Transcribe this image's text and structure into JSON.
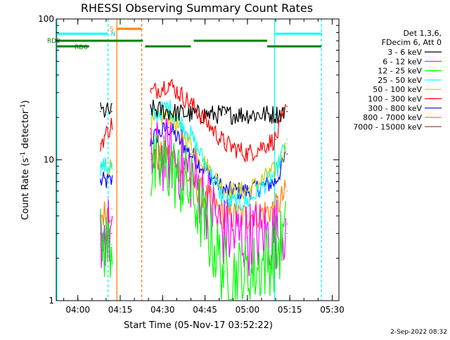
{
  "chart_data": {
    "type": "line",
    "title": "RHESSI Observing Summary Count Rates",
    "xlabel": "Start Time (05-Nov-17 03:52:22)",
    "ylabel_parts": [
      "Count Rate (s",
      "-1",
      " detector",
      "-1",
      ")"
    ],
    "yscale": "log",
    "ylim": [
      1,
      100
    ],
    "y_ticks": [
      1,
      10,
      100
    ],
    "y_tick_labels": [
      "1",
      "10",
      "100"
    ],
    "x_range": [
      "03:52:22",
      "05:32:22"
    ],
    "x_ticks": [
      "04:00",
      "04:15",
      "04:30",
      "04:45",
      "05:00",
      "05:15",
      "05:30"
    ],
    "info_lines": [
      "Det 1,3,6,",
      "FDecim 6, Att 0"
    ],
    "legend_position": "right",
    "series": [
      {
        "name": "3 - 6 keV",
        "color": "#000000",
        "x": [
          "04:08",
          "04:12",
          "04:26",
          "04:32",
          "04:40",
          "04:52",
          "05:00",
          "05:10",
          "05:14"
        ],
        "y": [
          22,
          22,
          23,
          22,
          21,
          21,
          21,
          21,
          22
        ]
      },
      {
        "name": "6 - 12 keV",
        "color": "#ff00ff",
        "x": [
          "04:08",
          "04:12",
          "04:26",
          "04:32",
          "04:40",
          "04:52",
          "05:00",
          "05:10",
          "05:14"
        ],
        "y": [
          3,
          3,
          10,
          11,
          8,
          3,
          2.8,
          3,
          3.5
        ]
      },
      {
        "name": "12 - 25 keV",
        "color": "#00ff00",
        "x": [
          "04:08",
          "04:12",
          "04:26",
          "04:32",
          "04:40",
          "04:52",
          "05:00",
          "05:10",
          "05:14"
        ],
        "y": [
          2.5,
          2.5,
          8,
          9,
          6,
          1.6,
          1.5,
          2.2,
          3
        ]
      },
      {
        "name": "25 - 50 keV",
        "color": "#00ffff",
        "x": [
          "04:08",
          "04:12",
          "04:26",
          "04:32",
          "04:40",
          "04:52",
          "05:00",
          "05:10",
          "05:14"
        ],
        "y": [
          9,
          9,
          20,
          24,
          15,
          5,
          5,
          8,
          14
        ]
      },
      {
        "name": "50 - 100 keV",
        "color": "#cccc00",
        "x": [
          "04:08",
          "04:12",
          "04:26",
          "04:32",
          "04:40",
          "04:52",
          "05:00",
          "05:10",
          "05:14"
        ],
        "y": [
          9,
          9,
          18,
          21,
          13,
          6,
          6,
          8.5,
          13
        ]
      },
      {
        "name": "100 - 300 keV",
        "color": "#ff0000",
        "x": [
          "04:08",
          "04:12",
          "04:26",
          "04:32",
          "04:40",
          "04:52",
          "05:00",
          "05:10",
          "05:14"
        ],
        "y": [
          13,
          18,
          30,
          35,
          25,
          13,
          11,
          14,
          24
        ]
      },
      {
        "name": "300 - 800 keV",
        "color": "#0000ff",
        "x": [
          "04:08",
          "04:12",
          "04:26",
          "04:32",
          "04:40",
          "04:52",
          "05:00",
          "05:10",
          "05:14"
        ],
        "y": [
          7,
          7,
          14,
          17,
          11,
          6,
          6,
          7,
          11
        ]
      },
      {
        "name": "800 - 7000 keV",
        "color": "#ff8000",
        "x": [
          "04:08",
          "04:12",
          "04:26",
          "04:32",
          "04:40",
          "04:52",
          "05:00",
          "05:10",
          "05:14"
        ],
        "y": [
          4,
          4.5,
          10,
          11,
          7,
          4,
          4,
          4.5,
          6
        ]
      },
      {
        "name": "7000 - 15000 keV",
        "color": "#a0522d",
        "x": [],
        "y": []
      }
    ],
    "flags": [
      {
        "label": "RD0",
        "color": "#008000"
      },
      {
        "label": "RD6",
        "color": "#008000"
      },
      {
        "label": "S",
        "color": "#ff8000"
      },
      {
        "label": "N",
        "color": "#00cccc"
      }
    ]
  },
  "footer": {
    "timestamp": "2-Sep-2022 08:32"
  }
}
